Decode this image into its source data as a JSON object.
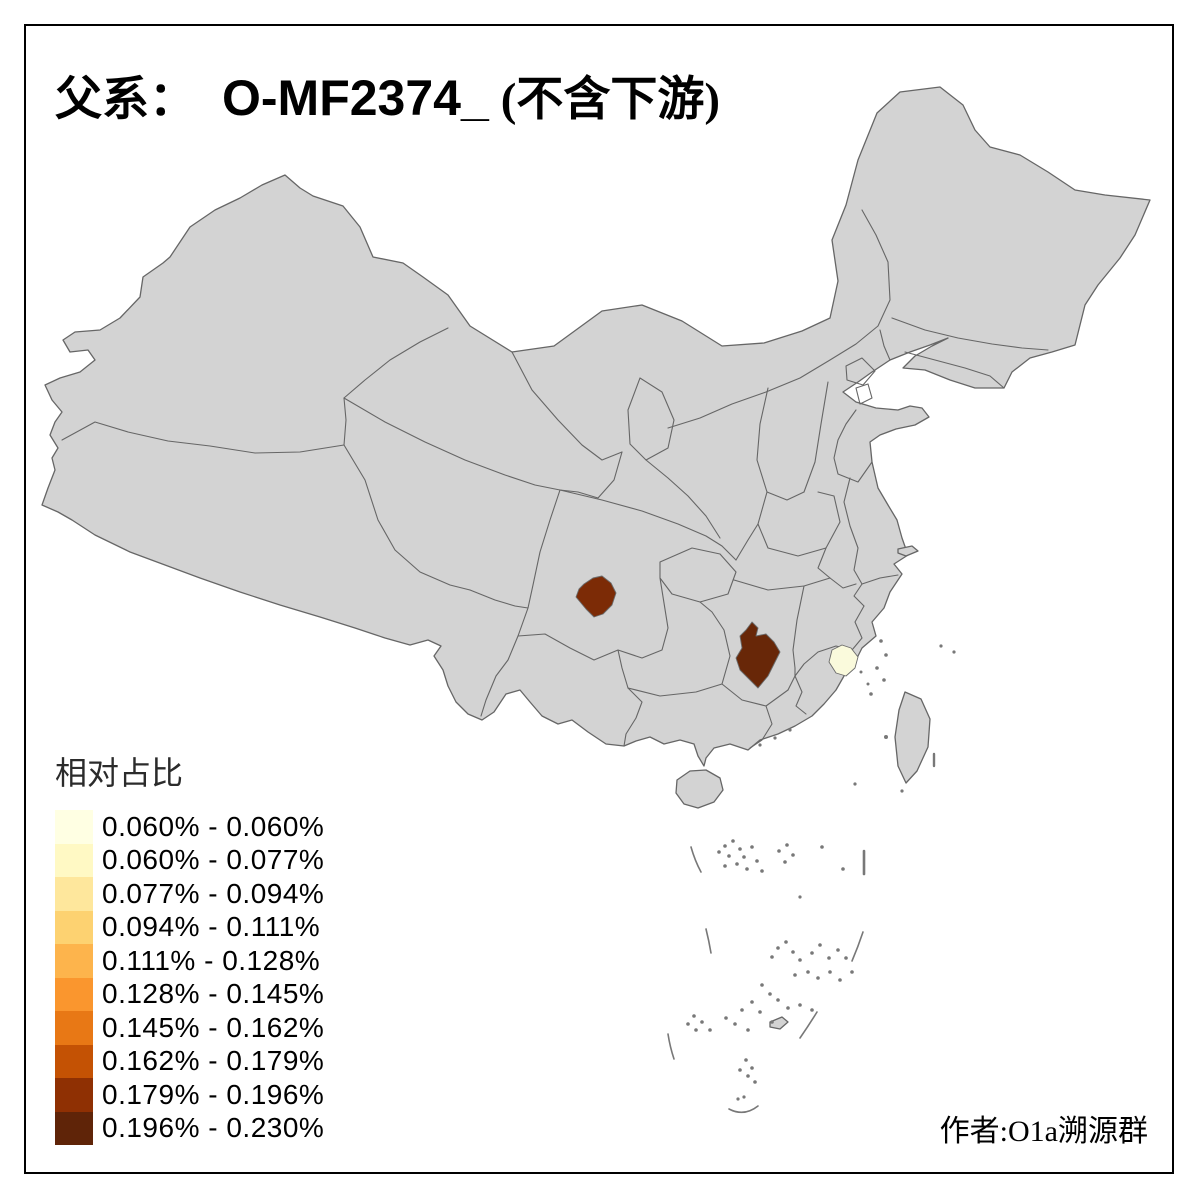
{
  "title": {
    "prefix": "父系：",
    "haplogroup": "O-MF2374_",
    "suffix": "(不含下游)"
  },
  "legend": {
    "title": "相对占比",
    "classes": [
      {
        "range": "0.060% - 0.060%",
        "color": "#FFFFE3"
      },
      {
        "range": "0.060% - 0.077%",
        "color": "#FFF9C4"
      },
      {
        "range": "0.077% - 0.094%",
        "color": "#FEE79C"
      },
      {
        "range": "0.094% - 0.111%",
        "color": "#FDD271"
      },
      {
        "range": "0.111% - 0.128%",
        "color": "#FDB44C"
      },
      {
        "range": "0.128% - 0.145%",
        "color": "#FA962E"
      },
      {
        "range": "0.145% - 0.162%",
        "color": "#E87815"
      },
      {
        "range": "0.162% - 0.179%",
        "color": "#C45204"
      },
      {
        "range": "0.179% - 0.196%",
        "color": "#8F3003"
      },
      {
        "range": "0.196% - 0.230%",
        "color": "#5F2408"
      }
    ]
  },
  "author": "作者:O1a溯源群",
  "map": {
    "land_color": "#D3D3D3",
    "border_color": "#666666",
    "sea_color": "#FFFFFF",
    "frame_color": "#000000",
    "highlights": [
      {
        "name": "sichuan-prefecture",
        "range": "0.179% - 0.196%",
        "color": "#7C2B06"
      },
      {
        "name": "hunan-prefecture",
        "range": "0.196% - 0.230%",
        "color": "#682708"
      },
      {
        "name": "fujian-prefecture",
        "range": "0.060% - 0.060%",
        "color": "#FAFADC"
      }
    ]
  }
}
